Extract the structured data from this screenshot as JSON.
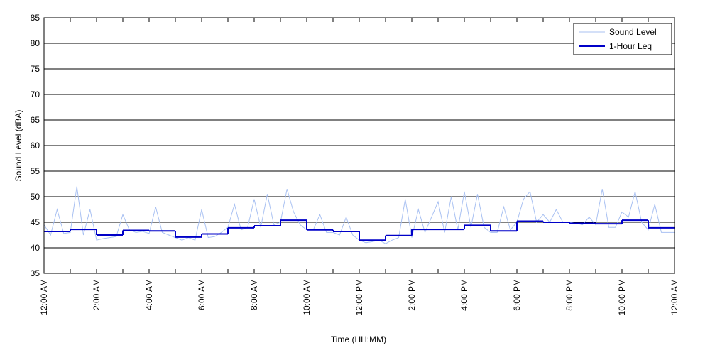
{
  "chart_data": {
    "type": "line",
    "xlabel": "Time (HH:MM)",
    "ylabel": "Sound Level (dBA)",
    "xlim": [
      0,
      24
    ],
    "xticks": [
      {
        "value": 0,
        "label": "12:00 AM"
      },
      {
        "value": 2,
        "label": "2:00 AM"
      },
      {
        "value": 4,
        "label": "4:00 AM"
      },
      {
        "value": 6,
        "label": "6:00 AM"
      },
      {
        "value": 8,
        "label": "8:00 AM"
      },
      {
        "value": 10,
        "label": "10:00 AM"
      },
      {
        "value": 12,
        "label": "12:00 PM"
      },
      {
        "value": 14,
        "label": "2:00 PM"
      },
      {
        "value": 16,
        "label": "4:00 PM"
      },
      {
        "value": 18,
        "label": "6:00 PM"
      },
      {
        "value": 20,
        "label": "8:00 PM"
      },
      {
        "value": 22,
        "label": "10:00 PM"
      },
      {
        "value": 24,
        "label": "12:00 AM"
      }
    ],
    "xminor_ticks": [
      1,
      3,
      5,
      7,
      9,
      11,
      13,
      15,
      17,
      19,
      21,
      23
    ],
    "ylim": [
      35,
      85
    ],
    "yticks": [
      35,
      40,
      45,
      50,
      55,
      60,
      65,
      70,
      75,
      80,
      85
    ],
    "grid": true,
    "legend": "upper right",
    "series": [
      {
        "name": "Sound Level",
        "color": "#a9c1f2",
        "x": [
          0,
          0.25,
          0.5,
          0.75,
          1,
          1.25,
          1.5,
          1.75,
          2,
          2.25,
          2.5,
          2.75,
          3,
          3.25,
          3.5,
          3.75,
          4,
          4.25,
          4.5,
          4.75,
          5,
          5.25,
          5.5,
          5.75,
          6,
          6.25,
          6.5,
          6.75,
          7,
          7.25,
          7.5,
          7.75,
          8,
          8.25,
          8.5,
          8.75,
          9,
          9.25,
          9.5,
          9.75,
          10,
          10.25,
          10.5,
          10.75,
          11,
          11.25,
          11.5,
          11.75,
          12,
          12.25,
          12.5,
          12.75,
          13,
          13.25,
          13.5,
          13.75,
          14,
          14.25,
          14.5,
          14.75,
          15,
          15.25,
          15.5,
          15.75,
          16,
          16.25,
          16.5,
          16.75,
          17,
          17.25,
          17.5,
          17.75,
          18,
          18.25,
          18.5,
          18.75,
          19,
          19.25,
          19.5,
          19.75,
          20,
          20.25,
          20.5,
          20.75,
          21,
          21.25,
          21.5,
          21.75,
          22,
          22.25,
          22.5,
          22.75,
          23,
          23.25,
          23.5,
          23.75,
          24
        ],
        "values": [
          44.5,
          42.5,
          47.5,
          42.8,
          43,
          52,
          42.5,
          47.5,
          41.5,
          41.8,
          42,
          42.2,
          46.5,
          43.5,
          43,
          43.2,
          42.8,
          48,
          43,
          42.5,
          42,
          41.5,
          42,
          41.5,
          47.5,
          42,
          42.2,
          43,
          44,
          48.5,
          43.5,
          44,
          49.5,
          44,
          50.5,
          44.5,
          45,
          51.5,
          47,
          44.5,
          43.5,
          43.5,
          46.5,
          43,
          43,
          42.5,
          46,
          42.5,
          41.5,
          41,
          41.2,
          41.5,
          40.8,
          41.5,
          42,
          49.5,
          42,
          47.5,
          43,
          46,
          49,
          43,
          50,
          43.5,
          51,
          44,
          50.5,
          44,
          43,
          43,
          48,
          43.5,
          45,
          49.5,
          51,
          45,
          46.5,
          45,
          47.5,
          45,
          45,
          44.8,
          44.5,
          46,
          44.5,
          51.5,
          44,
          44,
          47,
          46,
          51,
          45,
          43.5,
          48.5,
          43,
          43,
          43
        ]
      },
      {
        "name": "1-Hour Leq",
        "color": "#0000c8",
        "drawstyle": "steps-post",
        "x": [
          0,
          1,
          2,
          3,
          4,
          5,
          6,
          7,
          8,
          9,
          10,
          11,
          12,
          13,
          14,
          15,
          16,
          17,
          18,
          19,
          20,
          21,
          22,
          23
        ],
        "values": [
          43.2,
          43.6,
          42.5,
          43.4,
          43.3,
          42.1,
          42.7,
          43.9,
          44.3,
          45.4,
          43.5,
          43.2,
          41.5,
          42.4,
          43.6,
          43.6,
          44.4,
          43.3,
          45.2,
          45.0,
          44.8,
          44.7,
          45.4,
          43.9
        ]
      }
    ]
  }
}
